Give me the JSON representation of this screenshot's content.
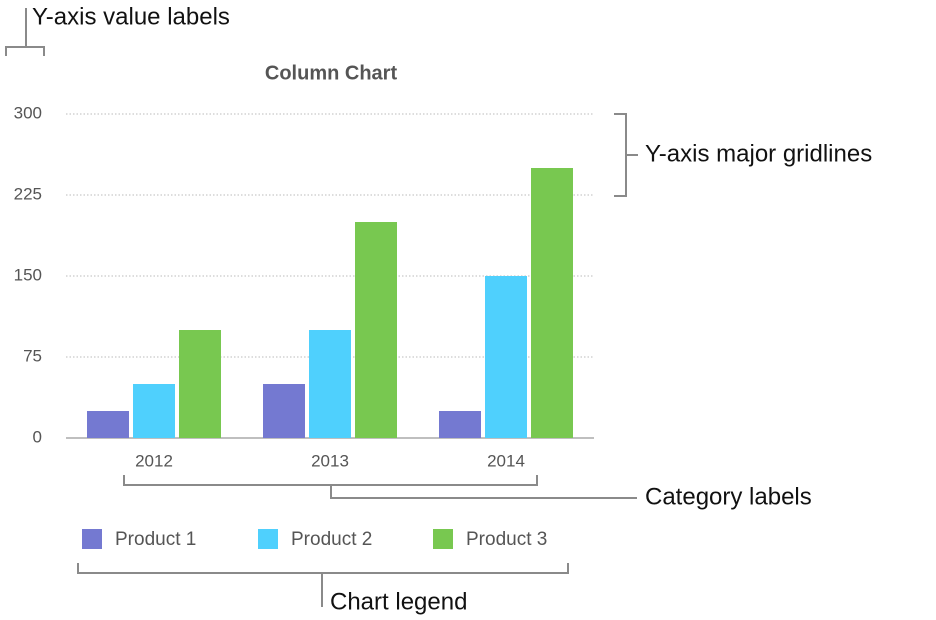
{
  "chart_data": {
    "type": "bar",
    "title": "Column Chart",
    "categories": [
      "2012",
      "2013",
      "2014"
    ],
    "series": [
      {
        "name": "Product 1",
        "color": "#7479d1",
        "values": [
          25,
          50,
          25
        ]
      },
      {
        "name": "Product 2",
        "color": "#4fd0fd",
        "values": [
          50,
          100,
          150
        ]
      },
      {
        "name": "Product 3",
        "color": "#78c850",
        "values": [
          100,
          200,
          250
        ]
      }
    ],
    "ylim": [
      0,
      300
    ],
    "yticks": [
      0,
      75,
      150,
      225,
      300
    ],
    "grid": true,
    "annotations": [
      "Y-axis value labels",
      "Y-axis major gridlines",
      "Category labels",
      "Chart legend"
    ]
  }
}
